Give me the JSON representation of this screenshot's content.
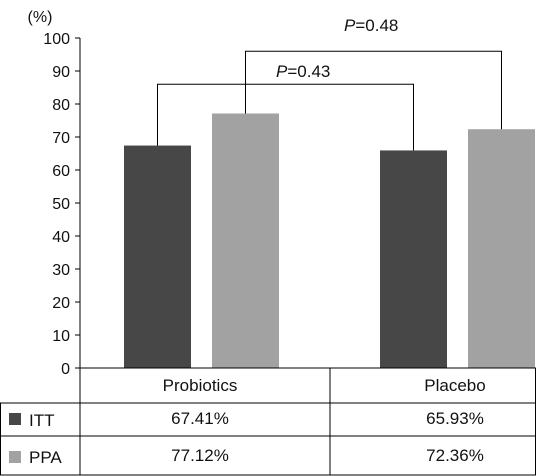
{
  "chart_data": {
    "type": "bar",
    "ylabel": "(%)",
    "ylim": [
      0,
      100
    ],
    "yticks": [
      0,
      10,
      20,
      30,
      40,
      50,
      60,
      70,
      80,
      90,
      100
    ],
    "categories": [
      "Probiotics",
      "Placebo"
    ],
    "series": [
      {
        "name": "ITT",
        "values": [
          67.41,
          65.93
        ],
        "color": "#474747"
      },
      {
        "name": "PPA",
        "values": [
          77.12,
          72.36
        ],
        "color": "#a2a2a2"
      }
    ],
    "table": {
      "rows": [
        {
          "label": "ITT",
          "cells": [
            "67.41%",
            "65.93%"
          ]
        },
        {
          "label": "PPA",
          "cells": [
            "77.12%",
            "72.36%"
          ]
        }
      ]
    },
    "annotations": [
      {
        "p_letter": "P",
        "text": "=0.43",
        "compare": "ITT"
      },
      {
        "p_letter": "P",
        "text": "=0.48",
        "compare": "PPA"
      }
    ],
    "grid": false,
    "legend": "table-rows"
  }
}
